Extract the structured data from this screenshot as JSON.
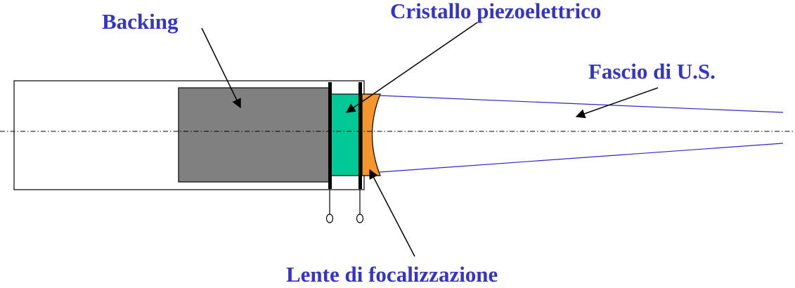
{
  "labels": {
    "backing": "Backing",
    "crystal": "Cristallo piezoelettrico",
    "beam": "Fascio di U.S.",
    "lens": "Lente di focalizzazione"
  },
  "colors": {
    "label_text": "#3434c8",
    "backing_fill": "#808080",
    "crystal_fill": "#00c896",
    "lens_fill": "#f5962d",
    "beam_line": "#2a2ac8",
    "outline": "#000000"
  }
}
